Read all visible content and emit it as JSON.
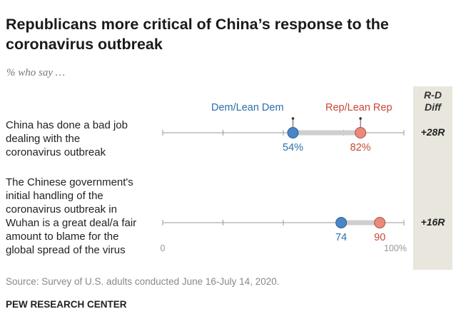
{
  "title": "Republicans more critical of China’s response to the coronavirus outbreak",
  "subtitle": "% who say …",
  "diff_header": [
    "R-D",
    "Diff"
  ],
  "chart_data": {
    "type": "dot-range",
    "xlim": [
      0,
      100
    ],
    "tick_labels": [
      "0",
      "100%"
    ],
    "series": [
      {
        "name": "Dem/Lean Dem",
        "color": "#4a86c5",
        "label_color": "#2a6fa8"
      },
      {
        "name": "Rep/Lean Rep",
        "color": "#e98a7c",
        "label_color": "#c8473a"
      }
    ],
    "rows": [
      {
        "label": [
          "China has done a bad job",
          "dealing with the",
          "coronavirus outbreak"
        ],
        "dem": 54,
        "rep": 82,
        "dem_label": "54%",
        "rep_label": "82%",
        "diff": "+28R"
      },
      {
        "label": [
          "The Chinese government's",
          "initial handling of the",
          "coronavirus outbreak in",
          "Wuhan is a great deal/a fair",
          "amount to blame for the",
          "global spread of the virus"
        ],
        "dem": 74,
        "rep": 90,
        "dem_label": "74",
        "rep_label": "90",
        "diff": "+16R"
      }
    ]
  },
  "source": "Source: Survey of U.S. adults conducted June 16-July 14, 2020.",
  "org": "PEW RESEARCH CENTER"
}
